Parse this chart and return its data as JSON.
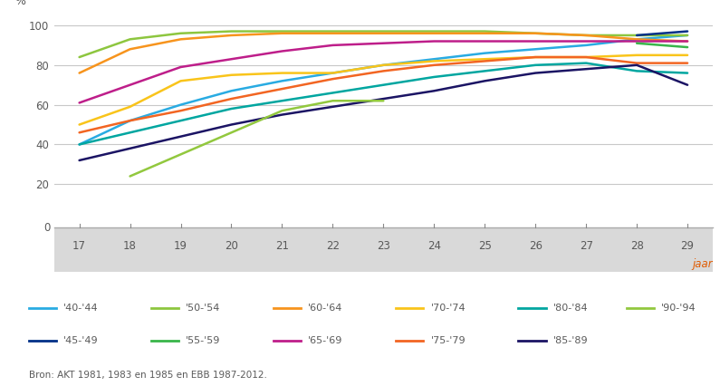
{
  "x": [
    17,
    18,
    19,
    20,
    21,
    22,
    23,
    24,
    25,
    26,
    27,
    28,
    29
  ],
  "series": [
    {
      "label": "'40-'44",
      "color": "#29abe2",
      "y": [
        40,
        52,
        60,
        67,
        72,
        76,
        80,
        83,
        86,
        88,
        90,
        93,
        95
      ]
    },
    {
      "label": "'50-'54",
      "color": "#8dc63f",
      "y": [
        84,
        93,
        96,
        97,
        97,
        97,
        97,
        97,
        97,
        96,
        95,
        95,
        95
      ]
    },
    {
      "label": "'60-'64",
      "color": "#f7941d",
      "y": [
        76,
        88,
        93,
        95,
        96,
        96,
        96,
        96,
        96,
        96,
        95,
        93,
        92
      ]
    },
    {
      "label": "'65-'69",
      "color": "#be1e8a",
      "y": [
        61,
        70,
        79,
        83,
        87,
        90,
        91,
        92,
        92,
        92,
        92,
        92,
        92
      ]
    },
    {
      "label": "'70-'74",
      "color": "#f9c41a",
      "y": [
        50,
        59,
        72,
        75,
        76,
        76,
        80,
        82,
        83,
        84,
        84,
        85,
        85
      ]
    },
    {
      "label": "'75-'79",
      "color": "#f26522",
      "y": [
        46,
        52,
        57,
        63,
        68,
        73,
        77,
        80,
        82,
        84,
        84,
        81,
        81
      ]
    },
    {
      "label": "'80-'84",
      "color": "#00a6a0",
      "y": [
        40,
        46,
        52,
        58,
        62,
        66,
        70,
        74,
        77,
        80,
        81,
        77,
        76
      ]
    },
    {
      "label": "'85-'89",
      "color": "#1b1464",
      "y": [
        32,
        38,
        44,
        50,
        55,
        59,
        63,
        67,
        72,
        76,
        78,
        80,
        70
      ]
    },
    {
      "label": "'90-'94",
      "color": "#92c83e",
      "y": [
        null,
        24,
        35,
        46,
        57,
        62,
        62,
        null,
        null,
        null,
        null,
        null,
        null
      ]
    },
    {
      "label": "'45-'49",
      "color": "#003087",
      "y": [
        null,
        null,
        null,
        null,
        null,
        null,
        null,
        null,
        null,
        null,
        null,
        95,
        97
      ]
    },
    {
      "label": "'55-'59",
      "color": "#39b54a",
      "y": [
        null,
        null,
        null,
        null,
        null,
        null,
        null,
        null,
        null,
        null,
        null,
        91,
        89
      ]
    }
  ],
  "ylabel": "%",
  "xlabel": "jaar",
  "ylim": [
    0,
    105
  ],
  "yticks": [
    20,
    40,
    60,
    80,
    100
  ],
  "xticks": [
    17,
    18,
    19,
    20,
    21,
    22,
    23,
    24,
    25,
    26,
    27,
    28,
    29
  ],
  "source": "Bron: AKT 1981, 1983 en 1985 en EBB 1987-2012.",
  "legend_row1": [
    {
      "label": "'40-'44",
      "color": "#29abe2"
    },
    {
      "label": "'50-'54",
      "color": "#8dc63f"
    },
    {
      "label": "'60-'64",
      "color": "#f7941d"
    },
    {
      "label": "'70-'74",
      "color": "#f9c41a"
    },
    {
      "label": "'80-'84",
      "color": "#00a6a0"
    },
    {
      "label": "'90-'94",
      "color": "#92c83e"
    }
  ],
  "legend_row2": [
    {
      "label": "'45-'49",
      "color": "#003087"
    },
    {
      "label": "'55-'59",
      "color": "#39b54a"
    },
    {
      "label": "'65-'69",
      "color": "#be1e8a"
    },
    {
      "label": "'75-'79",
      "color": "#f26522"
    },
    {
      "label": "'85-'89",
      "color": "#1b1464"
    }
  ],
  "bg_gray": "#d9d9d9",
  "plot_bg": "#ffffff",
  "text_color": "#595959",
  "grid_color": "#c8c8c8",
  "jaar_color": "#e05a00"
}
